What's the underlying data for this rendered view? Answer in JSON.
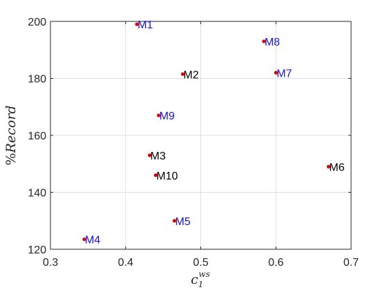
{
  "chart_data": {
    "type": "scatter",
    "title": "",
    "xlabel": "c_1^{ws}",
    "ylabel": "%Record",
    "xlim": [
      0.3,
      0.7
    ],
    "ylim": [
      120,
      200
    ],
    "x_ticks": [
      "0.3",
      "0.4",
      "0.5",
      "0.6",
      "0.7"
    ],
    "y_ticks": [
      "120",
      "140",
      "160",
      "180",
      "200"
    ],
    "grid": true,
    "marker_color": "#e00000",
    "series": [
      {
        "points": [
          {
            "label": "M1",
            "x": 0.415,
            "y": 199,
            "label_color": "#1515e6"
          },
          {
            "label": "M2",
            "x": 0.476,
            "y": 181.5,
            "label_color": "#000000"
          },
          {
            "label": "M3",
            "x": 0.432,
            "y": 153,
            "label_color": "#000000"
          },
          {
            "label": "M4",
            "x": 0.345,
            "y": 123.5,
            "label_color": "#1515e6"
          },
          {
            "label": "M5",
            "x": 0.465,
            "y": 130,
            "label_color": "#1515e6"
          },
          {
            "label": "M6",
            "x": 0.67,
            "y": 149,
            "label_color": "#000000"
          },
          {
            "label": "M7",
            "x": 0.6,
            "y": 182,
            "label_color": "#1515e6"
          },
          {
            "label": "M8",
            "x": 0.584,
            "y": 193,
            "label_color": "#1515e6"
          },
          {
            "label": "M9",
            "x": 0.444,
            "y": 167,
            "label_color": "#1515e6"
          },
          {
            "label": "M10",
            "x": 0.44,
            "y": 146,
            "label_color": "#000000"
          }
        ]
      }
    ]
  }
}
